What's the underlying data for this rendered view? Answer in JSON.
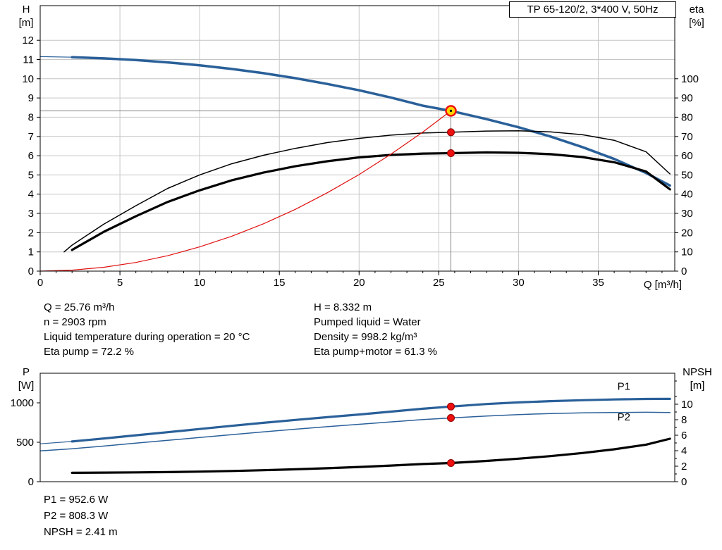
{
  "title_box": {
    "label": "TP 65-120/2, 3*400 V, 50Hz"
  },
  "info": {
    "left": [
      "Q = 25.76 m³/h",
      "n = 2903 rpm",
      "Liquid temperature during operation = 20 °C",
      "Eta pump = 72.2 %"
    ],
    "right": [
      "H = 8.332 m",
      "Pumped liquid = Water",
      "Density = 998.2 kg/m³",
      "Eta pump+motor = 61.3 %"
    ]
  },
  "results": [
    "P1 = 952.6 W",
    "P2 = 808.3 W",
    "NPSH = 2.41 m"
  ],
  "operating_point": {
    "Q_m3h": 25.76,
    "H_m": 8.332,
    "n_rpm": 2903,
    "liquid_temperature_c": 20,
    "eta_pump_pct": 72.2,
    "eta_pump_motor_pct": 61.3,
    "pumped_liquid": "Water",
    "density_kg_m3": 998.2,
    "P1_W": 952.6,
    "P2_W": 808.3,
    "NPSH_m": 2.41
  },
  "colors": {
    "curve_blue": "#2a6099",
    "curve_black": "#000000",
    "curve_red": "#e01010",
    "grid": "#c6c6c6",
    "crosshair": "#808080",
    "marker_red": "#ee1010",
    "duty_fill": "#ffd500"
  },
  "chart_data": [
    {
      "type": "line",
      "title": "TP 65-120/2, 3*400 V, 50Hz",
      "x_axis": {
        "label": "Q [m³/h]",
        "min": 0,
        "max": 39.8,
        "major_ticks": [
          0,
          5,
          10,
          15,
          20,
          25,
          30,
          35
        ],
        "minor_step": 1
      },
      "y_left": {
        "name": "H",
        "unit": "[m]",
        "min": 0,
        "max": 13.8,
        "ticks": [
          0,
          1,
          2,
          3,
          4,
          5,
          6,
          7,
          8,
          9,
          10,
          11,
          12
        ]
      },
      "y_right": {
        "name": "eta",
        "unit": "[%]",
        "min": 0,
        "max": 138,
        "ticks": [
          0,
          10,
          20,
          30,
          40,
          50,
          60,
          70,
          80,
          90,
          100
        ]
      },
      "grid": true,
      "legend": "none",
      "series": [
        {
          "name": "qh-curve-lead",
          "axis": "left",
          "color": "#2a6099",
          "width": 1.2,
          "x": [
            0,
            2
          ],
          "y": [
            11.15,
            11.12
          ]
        },
        {
          "name": "qh-curve",
          "axis": "left",
          "color": "#2a6099",
          "width": 3.5,
          "x": [
            2,
            4,
            6,
            8,
            10,
            12,
            14,
            16,
            18,
            20,
            22,
            24,
            25.76,
            28,
            30,
            32,
            34,
            36,
            38,
            39.5
          ],
          "y": [
            11.12,
            11.06,
            10.97,
            10.85,
            10.7,
            10.51,
            10.29,
            10.03,
            9.73,
            9.4,
            9.02,
            8.6,
            8.33,
            7.9,
            7.48,
            7.0,
            6.45,
            5.83,
            5.1,
            4.45
          ]
        },
        {
          "name": "eta-pump-curve",
          "axis": "right",
          "color": "#000000",
          "width": 1.5,
          "x": [
            1.5,
            2,
            4,
            6,
            8,
            10,
            12,
            14,
            16,
            18,
            20,
            22,
            24,
            25.76,
            28,
            30,
            32,
            34,
            36,
            38,
            39.5
          ],
          "y": [
            10,
            13.5,
            24.5,
            34,
            43,
            50,
            55.8,
            60.2,
            63.8,
            66.8,
            69.0,
            70.7,
            71.8,
            72.2,
            72.8,
            72.9,
            72.4,
            70.9,
            68.0,
            62.0,
            50.5
          ]
        },
        {
          "name": "eta-pump-motor-curve",
          "axis": "right",
          "color": "#000000",
          "width": 3.2,
          "x": [
            2,
            4,
            6,
            8,
            10,
            12,
            14,
            16,
            18,
            20,
            22,
            24,
            25.76,
            28,
            30,
            32,
            34,
            36,
            38,
            39.5
          ],
          "y": [
            11,
            20.5,
            28.5,
            36,
            42,
            47.2,
            51.2,
            54.5,
            57.1,
            59.1,
            60.4,
            61.1,
            61.3,
            61.7,
            61.5,
            60.8,
            59.3,
            56.6,
            51.8,
            42.5
          ]
        },
        {
          "name": "system-curve",
          "axis": "left",
          "color": "#e01010",
          "width": 1.2,
          "x": [
            0,
            2,
            4,
            6,
            8,
            10,
            12,
            14,
            16,
            18,
            20,
            22,
            24,
            25.76
          ],
          "y": [
            0,
            0.05,
            0.2,
            0.45,
            0.8,
            1.26,
            1.81,
            2.46,
            3.21,
            4.07,
            5.02,
            6.08,
            7.23,
            8.33
          ]
        }
      ],
      "markers": [
        {
          "name": "duty-point",
          "x": 25.76,
          "y": 8.332,
          "axis": "left",
          "style": "duty"
        },
        {
          "name": "eta-pump-point",
          "x": 25.76,
          "y": 72.2,
          "axis": "right",
          "style": "dot"
        },
        {
          "name": "eta-pump-motor-point",
          "x": 25.76,
          "y": 61.3,
          "axis": "right",
          "style": "dot"
        }
      ],
      "crosshair": {
        "x": 25.76,
        "y": 8.332
      }
    },
    {
      "type": "line",
      "title": "",
      "x_axis": {
        "label": "",
        "min": 0,
        "max": 39.8,
        "major_ticks": [],
        "minor_step": 0
      },
      "y_left": {
        "name": "P",
        "unit": "[W]",
        "min": 0,
        "max": 1375,
        "ticks": [
          0,
          500,
          1000
        ]
      },
      "y_right": {
        "name": "NPSH",
        "unit": "[m]",
        "min": 0,
        "max": 14,
        "ticks": [
          0,
          2,
          4,
          6,
          8,
          10
        ],
        "minor_ticks": [
          1,
          3,
          5,
          7,
          9,
          11,
          13
        ]
      },
      "grid": false,
      "legend": "inline",
      "series": [
        {
          "name": "p1-curve-lead",
          "axis": "left",
          "color": "#2a6099",
          "width": 1.2,
          "x": [
            0,
            2
          ],
          "y": [
            480,
            510
          ]
        },
        {
          "name": "p1-curve",
          "axis": "left",
          "color": "#2a6099",
          "width": 3.2,
          "label": "P1",
          "label_x": 36.2,
          "label_y": 1165,
          "x": [
            2,
            4,
            6,
            8,
            10,
            12,
            14,
            16,
            18,
            20,
            22,
            24,
            25.76,
            28,
            30,
            32,
            34,
            36,
            38,
            39.5
          ],
          "y": [
            510,
            548,
            588,
            628,
            668,
            708,
            746,
            783,
            818,
            852,
            888,
            925,
            952.6,
            985,
            1005,
            1021,
            1033,
            1043,
            1049,
            1050
          ]
        },
        {
          "name": "p2-curve",
          "axis": "left",
          "color": "#2a6099",
          "width": 1.5,
          "label": "P2",
          "label_x": 36.2,
          "label_y": 775,
          "x": [
            0,
            2,
            4,
            6,
            8,
            10,
            12,
            14,
            16,
            18,
            20,
            22,
            24,
            25.76,
            28,
            30,
            32,
            34,
            36,
            38,
            39.5
          ],
          "y": [
            390,
            418,
            452,
            488,
            524,
            560,
            596,
            631,
            665,
            697,
            728,
            758,
            788,
            808.3,
            833,
            851,
            864,
            873,
            878,
            880,
            878
          ]
        },
        {
          "name": "npsh-curve",
          "axis": "right",
          "color": "#000000",
          "width": 3.2,
          "x": [
            2,
            4,
            6,
            8,
            10,
            12,
            14,
            16,
            18,
            20,
            22,
            24,
            25.76,
            28,
            30,
            32,
            34,
            36,
            38,
            39.5
          ],
          "y": [
            1.15,
            1.17,
            1.2,
            1.24,
            1.3,
            1.38,
            1.48,
            1.6,
            1.74,
            1.9,
            2.08,
            2.28,
            2.41,
            2.68,
            2.97,
            3.3,
            3.7,
            4.18,
            4.78,
            5.55
          ]
        }
      ],
      "markers": [
        {
          "name": "p1-point",
          "x": 25.76,
          "y": 952.6,
          "axis": "left",
          "style": "dot"
        },
        {
          "name": "p2-point",
          "x": 25.76,
          "y": 808.3,
          "axis": "left",
          "style": "dot"
        },
        {
          "name": "npsh-point",
          "x": 25.76,
          "y": 2.41,
          "axis": "right",
          "style": "dot"
        }
      ]
    }
  ]
}
